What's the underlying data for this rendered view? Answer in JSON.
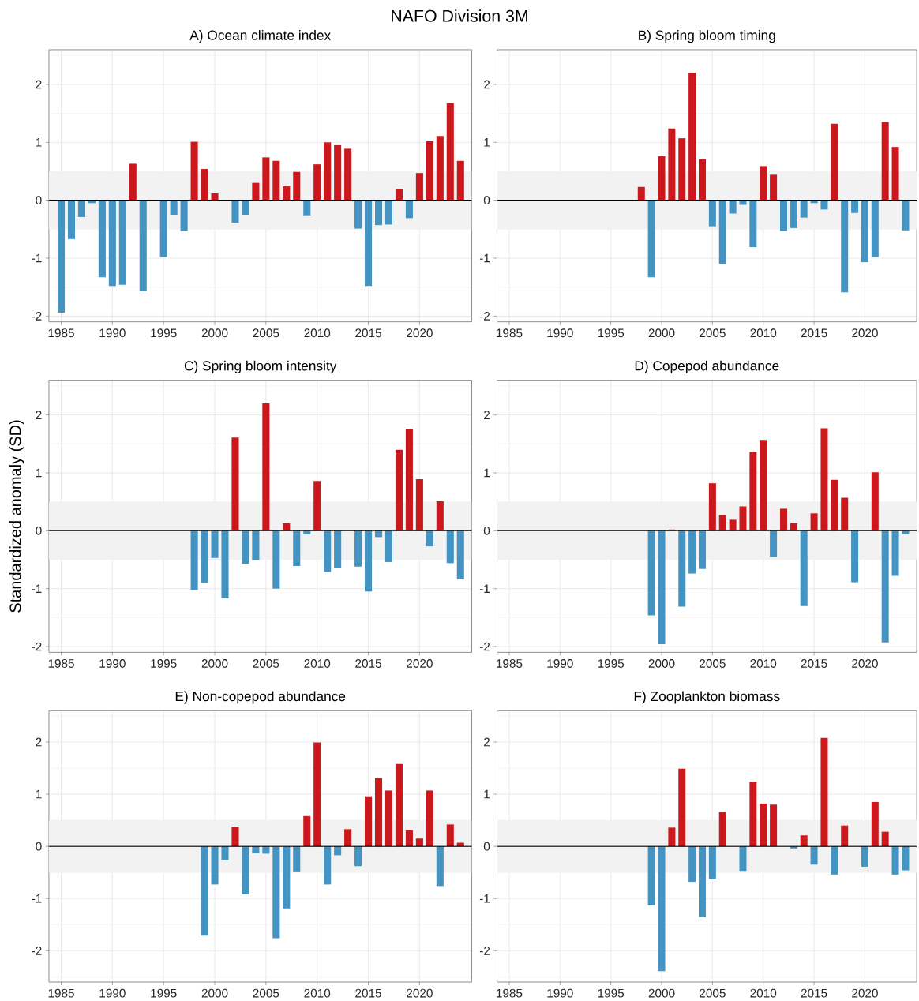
{
  "chart_data": [
    {
      "type": "other",
      "title": "NAFO Division 3M"
    },
    {
      "type": "bar",
      "title": "A) Ocean climate index",
      "x": [
        1985,
        1986,
        1987,
        1988,
        1989,
        1990,
        1991,
        1992,
        1993,
        1994,
        1995,
        1996,
        1997,
        1998,
        1999,
        2000,
        2001,
        2002,
        2003,
        2004,
        2005,
        2006,
        2007,
        2008,
        2009,
        2010,
        2011,
        2012,
        2013,
        2014,
        2015,
        2016,
        2017,
        2018,
        2019,
        2020,
        2021,
        2022,
        2023,
        2024
      ],
      "values": [
        -1.94,
        -0.67,
        -0.29,
        -0.05,
        -1.33,
        -1.48,
        -1.46,
        0.63,
        -1.57,
        null,
        -0.98,
        -0.25,
        -0.53,
        1.01,
        0.54,
        0.12,
        null,
        -0.39,
        -0.25,
        0.3,
        0.74,
        0.68,
        0.24,
        0.49,
        -0.26,
        0.62,
        1.0,
        0.95,
        0.89,
        -0.49,
        -1.48,
        -0.43,
        -0.42,
        0.19,
        -0.31,
        0.47,
        1.02,
        1.11,
        1.68,
        0.68
      ],
      "colors": [
        "#4393c3",
        "#4393c3",
        "#4393c3",
        "#4393c3",
        "#4393c3",
        "#4393c3",
        "#4393c3",
        "#cb181d",
        "#4393c3",
        null,
        "#4393c3",
        "#4393c3",
        "#4393c3",
        "#cb181d",
        "#cb181d",
        "#cb181d",
        null,
        "#4393c3",
        "#4393c3",
        "#cb181d",
        "#cb181d",
        "#cb181d",
        "#cb181d",
        "#cb181d",
        "#4393c3",
        "#cb181d",
        "#cb181d",
        "#cb181d",
        "#cb181d",
        "#4393c3",
        "#4393c3",
        "#4393c3",
        "#4393c3",
        "#cb181d",
        "#4393c3",
        "#cb181d",
        "#cb181d",
        "#cb181d",
        "#cb181d",
        "#cb181d"
      ],
      "xlim": [
        1983.8,
        2025.1
      ],
      "ylim": [
        -2.1,
        2.6
      ],
      "xticks": [
        1985,
        1990,
        1995,
        2000,
        2005,
        2010,
        2015,
        2020
      ],
      "yticks": [
        -2,
        -1,
        0,
        1,
        2
      ],
      "grid": true,
      "bands": [
        {
          "axis": "y",
          "from": -0.5,
          "to": 0.5,
          "color": "#f2f2f2"
        }
      ],
      "ref_lines": [
        {
          "axis": "y",
          "value": 0,
          "color": "#000000"
        }
      ]
    },
    {
      "type": "bar",
      "title": "B) Spring bloom timing",
      "x": [
        1998,
        1999,
        2000,
        2001,
        2002,
        2003,
        2004,
        2005,
        2006,
        2007,
        2008,
        2009,
        2010,
        2011,
        2012,
        2013,
        2014,
        2015,
        2016,
        2017,
        2018,
        2019,
        2020,
        2021,
        2022,
        2023,
        2024
      ],
      "values": [
        0.23,
        -1.33,
        0.76,
        1.24,
        1.07,
        2.2,
        0.71,
        -0.45,
        -1.1,
        -0.23,
        -0.08,
        -0.81,
        0.59,
        0.44,
        -0.53,
        -0.48,
        -0.3,
        -0.05,
        -0.16,
        1.32,
        -1.59,
        -0.22,
        -1.07,
        -0.98,
        1.35,
        0.92,
        -0.52
      ],
      "colors": [
        "#cb181d",
        "#4393c3",
        "#cb181d",
        "#cb181d",
        "#cb181d",
        "#cb181d",
        "#cb181d",
        "#4393c3",
        "#4393c3",
        "#4393c3",
        "#4393c3",
        "#4393c3",
        "#cb181d",
        "#cb181d",
        "#4393c3",
        "#4393c3",
        "#4393c3",
        "#4393c3",
        "#4393c3",
        "#cb181d",
        "#4393c3",
        "#4393c3",
        "#4393c3",
        "#4393c3",
        "#cb181d",
        "#cb181d",
        "#4393c3"
      ],
      "xlim": [
        1983.8,
        2025.1
      ],
      "ylim": [
        -2.1,
        2.6
      ],
      "xticks": [
        1985,
        1990,
        1995,
        2000,
        2005,
        2010,
        2015,
        2020
      ],
      "yticks": [
        -2,
        -1,
        0,
        1,
        2
      ],
      "grid": true,
      "bands": [
        {
          "axis": "y",
          "from": -0.5,
          "to": 0.5,
          "color": "#f2f2f2"
        }
      ],
      "ref_lines": [
        {
          "axis": "y",
          "value": 0,
          "color": "#000000"
        }
      ]
    },
    {
      "type": "bar",
      "title": "C) Spring bloom intensity",
      "ylabel": "Standardized anomaly (SD)",
      "x": [
        1998,
        1999,
        2000,
        2001,
        2002,
        2003,
        2004,
        2005,
        2006,
        2007,
        2008,
        2009,
        2010,
        2011,
        2012,
        2013,
        2014,
        2015,
        2016,
        2017,
        2018,
        2019,
        2020,
        2021,
        2022,
        2023,
        2024
      ],
      "values": [
        -1.02,
        -0.9,
        -0.47,
        -1.17,
        1.61,
        -0.57,
        -0.51,
        2.2,
        -1.0,
        0.13,
        -0.61,
        -0.06,
        0.86,
        -0.71,
        -0.65,
        null,
        -0.62,
        -1.05,
        -0.11,
        -0.54,
        1.4,
        1.76,
        0.89,
        -0.27,
        0.51,
        -0.56,
        -0.84
      ],
      "colors": [
        "#4393c3",
        "#4393c3",
        "#4393c3",
        "#4393c3",
        "#cb181d",
        "#4393c3",
        "#4393c3",
        "#cb181d",
        "#4393c3",
        "#cb181d",
        "#4393c3",
        "#4393c3",
        "#cb181d",
        "#4393c3",
        "#4393c3",
        "#4393c3",
        "#4393c3",
        "#4393c3",
        "#4393c3",
        "#4393c3",
        "#cb181d",
        "#cb181d",
        "#cb181d",
        "#4393c3",
        "#cb181d",
        "#4393c3",
        "#4393c3"
      ],
      "xlim": [
        1983.8,
        2025.1
      ],
      "ylim": [
        -2.1,
        2.6
      ],
      "xticks": [
        1985,
        1990,
        1995,
        2000,
        2005,
        2010,
        2015,
        2020
      ],
      "yticks": [
        -2,
        -1,
        0,
        1,
        2
      ],
      "grid": true,
      "bands": [
        {
          "axis": "y",
          "from": -0.5,
          "to": 0.5,
          "color": "#f2f2f2"
        }
      ],
      "ref_lines": [
        {
          "axis": "y",
          "value": 0,
          "color": "#000000"
        }
      ]
    },
    {
      "type": "bar",
      "title": "D) Copepod abundance",
      "x": [
        1999,
        2000,
        2001,
        2002,
        2003,
        2004,
        2005,
        2006,
        2007,
        2008,
        2009,
        2010,
        2011,
        2012,
        2013,
        2014,
        2015,
        2016,
        2017,
        2018,
        2019,
        2020,
        2021,
        2022,
        2023,
        2024
      ],
      "values": [
        -1.46,
        -1.96,
        0.02,
        -1.31,
        -0.74,
        -0.66,
        0.82,
        0.27,
        0.19,
        0.42,
        1.36,
        1.57,
        -0.45,
        0.38,
        0.13,
        -1.3,
        0.3,
        1.77,
        0.88,
        0.57,
        -0.89,
        null,
        1.01,
        -1.93,
        -0.78,
        -0.06
      ],
      "colors": [
        "#4393c3",
        "#4393c3",
        "#cb181d",
        "#4393c3",
        "#4393c3",
        "#4393c3",
        "#cb181d",
        "#cb181d",
        "#cb181d",
        "#cb181d",
        "#cb181d",
        "#cb181d",
        "#4393c3",
        "#cb181d",
        "#cb181d",
        "#4393c3",
        "#cb181d",
        "#cb181d",
        "#cb181d",
        "#cb181d",
        "#4393c3",
        null,
        "#cb181d",
        "#4393c3",
        "#4393c3",
        "#4393c3"
      ],
      "xlim": [
        1983.8,
        2025.1
      ],
      "ylim": [
        -2.1,
        2.6
      ],
      "xticks": [
        1985,
        1990,
        1995,
        2000,
        2005,
        2010,
        2015,
        2020
      ],
      "yticks": [
        -2,
        -1,
        0,
        1,
        2
      ],
      "grid": true,
      "bands": [
        {
          "axis": "y",
          "from": -0.5,
          "to": 0.5,
          "color": "#f2f2f2"
        }
      ],
      "ref_lines": [
        {
          "axis": "y",
          "value": 0,
          "color": "#000000"
        }
      ]
    },
    {
      "type": "bar",
      "title": "E) Non-copepod abundance",
      "x": [
        1999,
        2000,
        2001,
        2002,
        2003,
        2004,
        2005,
        2006,
        2007,
        2008,
        2009,
        2010,
        2011,
        2012,
        2013,
        2014,
        2015,
        2016,
        2017,
        2018,
        2019,
        2020,
        2021,
        2022,
        2023,
        2024
      ],
      "values": [
        -1.71,
        -0.73,
        -0.26,
        0.38,
        -0.92,
        -0.13,
        -0.14,
        -1.76,
        -1.19,
        -0.48,
        0.58,
        1.99,
        -0.73,
        -0.17,
        0.33,
        -0.38,
        0.96,
        1.31,
        1.07,
        1.58,
        0.31,
        0.15,
        1.07,
        -0.76,
        0.42,
        0.07
      ],
      "colors": [
        "#4393c3",
        "#4393c3",
        "#4393c3",
        "#cb181d",
        "#4393c3",
        "#4393c3",
        "#4393c3",
        "#4393c3",
        "#4393c3",
        "#4393c3",
        "#cb181d",
        "#cb181d",
        "#4393c3",
        "#4393c3",
        "#cb181d",
        "#4393c3",
        "#cb181d",
        "#cb181d",
        "#cb181d",
        "#cb181d",
        "#cb181d",
        "#cb181d",
        "#cb181d",
        "#4393c3",
        "#cb181d",
        "#cb181d"
      ],
      "xlim": [
        1983.8,
        2025.1
      ],
      "ylim": [
        -2.6,
        2.6
      ],
      "xticks": [
        1985,
        1990,
        1995,
        2000,
        2005,
        2010,
        2015,
        2020
      ],
      "yticks": [
        -2,
        -1,
        0,
        1,
        2
      ],
      "grid": true,
      "bands": [
        {
          "axis": "y",
          "from": -0.5,
          "to": 0.5,
          "color": "#f2f2f2"
        }
      ],
      "ref_lines": [
        {
          "axis": "y",
          "value": 0,
          "color": "#000000"
        }
      ]
    },
    {
      "type": "bar",
      "title": "F) Zooplankton biomass",
      "x": [
        1999,
        2000,
        2001,
        2002,
        2003,
        2004,
        2005,
        2006,
        2007,
        2008,
        2009,
        2010,
        2011,
        2012,
        2013,
        2014,
        2015,
        2016,
        2017,
        2018,
        2019,
        2020,
        2021,
        2022,
        2023,
        2024
      ],
      "values": [
        -1.13,
        -2.39,
        0.36,
        1.49,
        -0.68,
        -1.36,
        -0.63,
        0.66,
        null,
        -0.47,
        1.24,
        0.82,
        0.8,
        null,
        -0.04,
        0.21,
        -0.35,
        2.08,
        -0.54,
        0.4,
        null,
        -0.39,
        0.85,
        0.28,
        -0.54,
        -0.46
      ],
      "colors": [
        "#4393c3",
        "#4393c3",
        "#cb181d",
        "#cb181d",
        "#4393c3",
        "#4393c3",
        "#4393c3",
        "#cb181d",
        null,
        "#4393c3",
        "#cb181d",
        "#cb181d",
        "#cb181d",
        null,
        "#4393c3",
        "#cb181d",
        "#4393c3",
        "#cb181d",
        "#4393c3",
        "#cb181d",
        null,
        "#4393c3",
        "#cb181d",
        "#cb181d",
        "#4393c3",
        "#4393c3"
      ],
      "xlim": [
        1983.8,
        2025.1
      ],
      "ylim": [
        -2.6,
        2.6
      ],
      "xticks": [
        1985,
        1990,
        1995,
        2000,
        2005,
        2010,
        2015,
        2020
      ],
      "yticks": [
        -2,
        -1,
        0,
        1,
        2
      ],
      "grid": true,
      "bands": [
        {
          "axis": "y",
          "from": -0.5,
          "to": 0.5,
          "color": "#f2f2f2"
        }
      ],
      "ref_lines": [
        {
          "axis": "y",
          "value": 0,
          "color": "#000000"
        }
      ]
    }
  ]
}
